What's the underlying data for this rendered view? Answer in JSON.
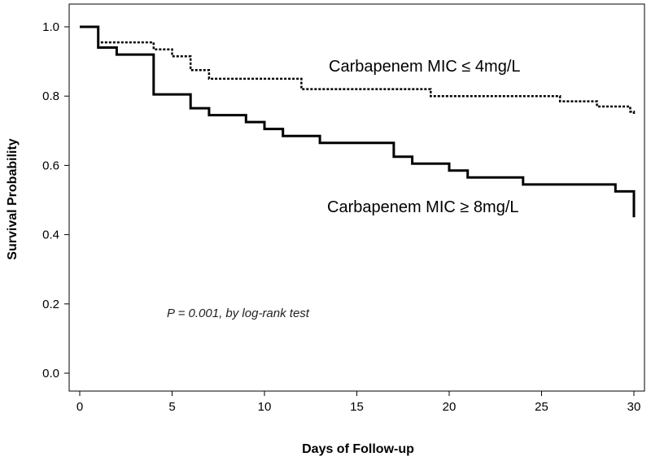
{
  "chart_data": {
    "type": "line",
    "subtype": "kaplan-meier step",
    "title": "",
    "xlabel": "Days of Follow-up",
    "ylabel": "Survival Probability",
    "xlim": [
      0,
      30
    ],
    "ylim": [
      0,
      1.0
    ],
    "x_ticks": [
      0,
      5,
      10,
      15,
      20,
      25,
      30
    ],
    "y_ticks": [
      0.0,
      0.2,
      0.4,
      0.6,
      0.8,
      1.0
    ],
    "y_tick_labels": [
      "0.0",
      "0.2",
      "0.4",
      "0.6",
      "0.8",
      "1.0"
    ],
    "grid": false,
    "annotation": "P = 0.001, by log-rank test",
    "series": [
      {
        "name": "Carbapenem MIC ≤ 4mg/L",
        "style": "dotted",
        "color": "#000000",
        "steps": [
          [
            0,
            1.0
          ],
          [
            1,
            0.955
          ],
          [
            4,
            0.935
          ],
          [
            5,
            0.915
          ],
          [
            6,
            0.875
          ],
          [
            7,
            0.85
          ],
          [
            12,
            0.82
          ],
          [
            19,
            0.8
          ],
          [
            26,
            0.785
          ],
          [
            28,
            0.77
          ],
          [
            29.8,
            0.755
          ],
          [
            30,
            0.745
          ]
        ]
      },
      {
        "name": "Carbapenem MIC ≥ 8mg/L",
        "style": "solid",
        "color": "#000000",
        "steps": [
          [
            0,
            1.0
          ],
          [
            1,
            0.94
          ],
          [
            2,
            0.92
          ],
          [
            4,
            0.805
          ],
          [
            6,
            0.765
          ],
          [
            7,
            0.745
          ],
          [
            9,
            0.725
          ],
          [
            10,
            0.705
          ],
          [
            11,
            0.685
          ],
          [
            13,
            0.665
          ],
          [
            17,
            0.625
          ],
          [
            18,
            0.605
          ],
          [
            20,
            0.585
          ],
          [
            21,
            0.565
          ],
          [
            24,
            0.545
          ],
          [
            29,
            0.525
          ],
          [
            30,
            0.45
          ]
        ]
      }
    ]
  }
}
